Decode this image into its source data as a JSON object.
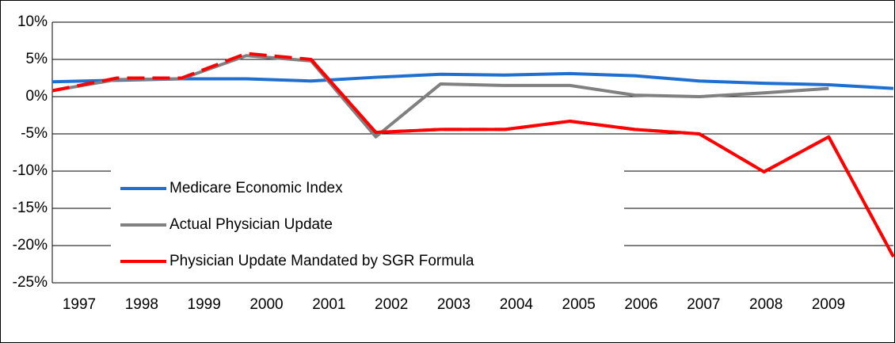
{
  "chart_data": {
    "type": "line",
    "categories": [
      "1997",
      "1998",
      "1999",
      "2000",
      "2001",
      "2002",
      "2003",
      "2004",
      "2005",
      "2006",
      "2007",
      "2008",
      "2009",
      null
    ],
    "series": [
      {
        "name": "Medicare Economic Index",
        "color": "#1f6fd1",
        "values": [
          2.0,
          2.2,
          2.4,
          2.4,
          2.1,
          2.6,
          3.0,
          2.9,
          3.1,
          2.8,
          2.1,
          1.8,
          1.6,
          1.1
        ]
      },
      {
        "name": "Actual Physician Update",
        "color": "#808080",
        "values": [
          0.8,
          2.3,
          2.4,
          5.5,
          4.8,
          -5.4,
          1.7,
          1.5,
          1.5,
          0.2,
          0.0,
          0.5,
          1.1,
          null
        ]
      },
      {
        "name": "Physician Update Mandated by SGR Formula",
        "color": "#ff0000",
        "values": [
          0.8,
          2.5,
          2.5,
          5.8,
          5.0,
          -4.8,
          -4.4,
          -4.4,
          -3.3,
          -4.4,
          -5.0,
          -10.1,
          -5.4,
          -21.5
        ]
      }
    ],
    "ylim": [
      -25,
      10
    ],
    "yticks": [
      {
        "value": -25,
        "label": "-25%"
      },
      {
        "value": -20,
        "label": "-20%"
      },
      {
        "value": -15,
        "label": "-15%"
      },
      {
        "value": -10,
        "label": "-10%"
      },
      {
        "value": -5,
        "label": "-5%"
      },
      {
        "value": 0,
        "label": "0%"
      },
      {
        "value": 5,
        "label": "5%"
      },
      {
        "value": 10,
        "label": "10%"
      }
    ],
    "grid": true
  }
}
